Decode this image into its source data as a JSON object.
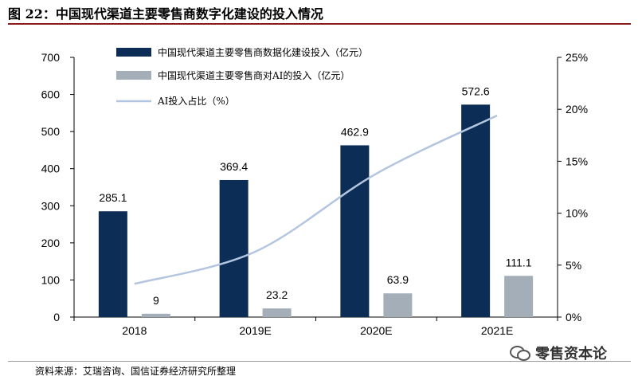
{
  "header": {
    "title": "图 22：中国现代渠道主要零售商数字化建设的投入情况"
  },
  "footer": {
    "source": "资料来源：艾瑞咨询、国信证券经济研究所整理"
  },
  "watermark": {
    "text": "零售资本论",
    "icon": "wechat-icon"
  },
  "colors": {
    "bar_primary": "#0c2d55",
    "bar_secondary": "#a3aeb8",
    "line": "#b4c5df",
    "title_rule": "#8b1c1c"
  },
  "chart_data": {
    "type": "bar",
    "title": "",
    "categories": [
      "2018",
      "2019E",
      "2020E",
      "2021E"
    ],
    "series": [
      {
        "name": "中国现代渠道主要零售商数据化建设投入（亿元）",
        "type": "bar",
        "axis": "left",
        "values": [
          285.1,
          369.4,
          462.9,
          572.6
        ],
        "labels": [
          "285.1",
          "369.4",
          "462.9",
          "572.6"
        ]
      },
      {
        "name": "中国现代渠道主要零售商对AI的投入（亿元）",
        "type": "bar",
        "axis": "left",
        "values": [
          9,
          23.2,
          63.9,
          111.1
        ],
        "labels": [
          "9",
          "23.2",
          "63.9",
          "111.1"
        ]
      },
      {
        "name": "AI投入占比（%）",
        "type": "line",
        "axis": "right",
        "values": [
          3.2,
          6.3,
          13.8,
          19.4
        ]
      }
    ],
    "ylim_left": [
      0,
      700
    ],
    "yticks_left": [
      "0",
      "100",
      "200",
      "300",
      "400",
      "500",
      "600",
      "700"
    ],
    "ylim_right": [
      0,
      25
    ],
    "yticks_right": [
      "0%",
      "5%",
      "10%",
      "15%",
      "20%",
      "25%"
    ],
    "grid": false,
    "legend_position": "top-left"
  }
}
